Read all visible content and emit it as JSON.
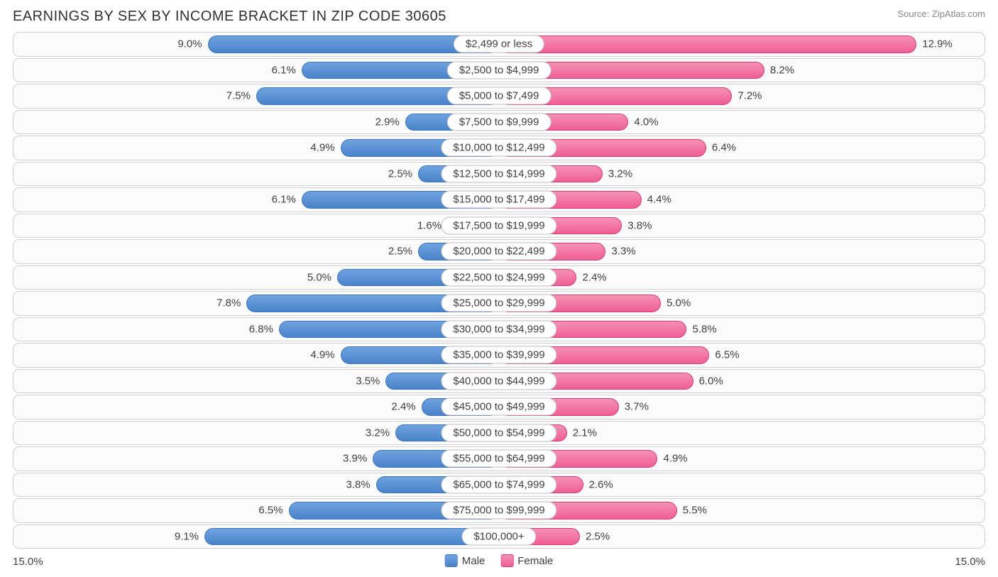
{
  "title": "EARNINGS BY SEX BY INCOME BRACKET IN ZIP CODE 30605",
  "source": "Source: ZipAtlas.com",
  "axis_max": 15.0,
  "axis_label_left": "15.0%",
  "axis_label_right": "15.0%",
  "colors": {
    "male_fill_start": "#6fa3df",
    "male_fill_end": "#4a83ca",
    "male_border": "#3a76c0",
    "female_fill_start": "#f591b4",
    "female_fill_end": "#ef5f94",
    "female_border": "#d83a77",
    "row_border": "#cfcfcf",
    "row_bg": "#fbfbfb",
    "text": "#404040",
    "title_text": "#303030",
    "source_text": "#888888",
    "cat_border": "#bfbfbf",
    "page_bg": "#ffffff"
  },
  "legend": {
    "male": "Male",
    "female": "Female"
  },
  "rows": [
    {
      "category": "$2,499 or less",
      "male": 9.0,
      "female": 12.9,
      "male_label": "9.0%",
      "female_label": "12.9%"
    },
    {
      "category": "$2,500 to $4,999",
      "male": 6.1,
      "female": 8.2,
      "male_label": "6.1%",
      "female_label": "8.2%"
    },
    {
      "category": "$5,000 to $7,499",
      "male": 7.5,
      "female": 7.2,
      "male_label": "7.5%",
      "female_label": "7.2%"
    },
    {
      "category": "$7,500 to $9,999",
      "male": 2.9,
      "female": 4.0,
      "male_label": "2.9%",
      "female_label": "4.0%"
    },
    {
      "category": "$10,000 to $12,499",
      "male": 4.9,
      "female": 6.4,
      "male_label": "4.9%",
      "female_label": "6.4%"
    },
    {
      "category": "$12,500 to $14,999",
      "male": 2.5,
      "female": 3.2,
      "male_label": "2.5%",
      "female_label": "3.2%"
    },
    {
      "category": "$15,000 to $17,499",
      "male": 6.1,
      "female": 4.4,
      "male_label": "6.1%",
      "female_label": "4.4%"
    },
    {
      "category": "$17,500 to $19,999",
      "male": 1.6,
      "female": 3.8,
      "male_label": "1.6%",
      "female_label": "3.8%"
    },
    {
      "category": "$20,000 to $22,499",
      "male": 2.5,
      "female": 3.3,
      "male_label": "2.5%",
      "female_label": "3.3%"
    },
    {
      "category": "$22,500 to $24,999",
      "male": 5.0,
      "female": 2.4,
      "male_label": "5.0%",
      "female_label": "2.4%"
    },
    {
      "category": "$25,000 to $29,999",
      "male": 7.8,
      "female": 5.0,
      "male_label": "7.8%",
      "female_label": "5.0%"
    },
    {
      "category": "$30,000 to $34,999",
      "male": 6.8,
      "female": 5.8,
      "male_label": "6.8%",
      "female_label": "5.8%"
    },
    {
      "category": "$35,000 to $39,999",
      "male": 4.9,
      "female": 6.5,
      "male_label": "4.9%",
      "female_label": "6.5%"
    },
    {
      "category": "$40,000 to $44,999",
      "male": 3.5,
      "female": 6.0,
      "male_label": "3.5%",
      "female_label": "6.0%"
    },
    {
      "category": "$45,000 to $49,999",
      "male": 2.4,
      "female": 3.7,
      "male_label": "2.4%",
      "female_label": "3.7%"
    },
    {
      "category": "$50,000 to $54,999",
      "male": 3.2,
      "female": 2.1,
      "male_label": "3.2%",
      "female_label": "2.1%"
    },
    {
      "category": "$55,000 to $64,999",
      "male": 3.9,
      "female": 4.9,
      "male_label": "3.9%",
      "female_label": "4.9%"
    },
    {
      "category": "$65,000 to $74,999",
      "male": 3.8,
      "female": 2.6,
      "male_label": "3.8%",
      "female_label": "2.6%"
    },
    {
      "category": "$75,000 to $99,999",
      "male": 6.5,
      "female": 5.5,
      "male_label": "6.5%",
      "female_label": "5.5%"
    },
    {
      "category": "$100,000+",
      "male": 9.1,
      "female": 2.5,
      "male_label": "9.1%",
      "female_label": "2.5%"
    }
  ]
}
